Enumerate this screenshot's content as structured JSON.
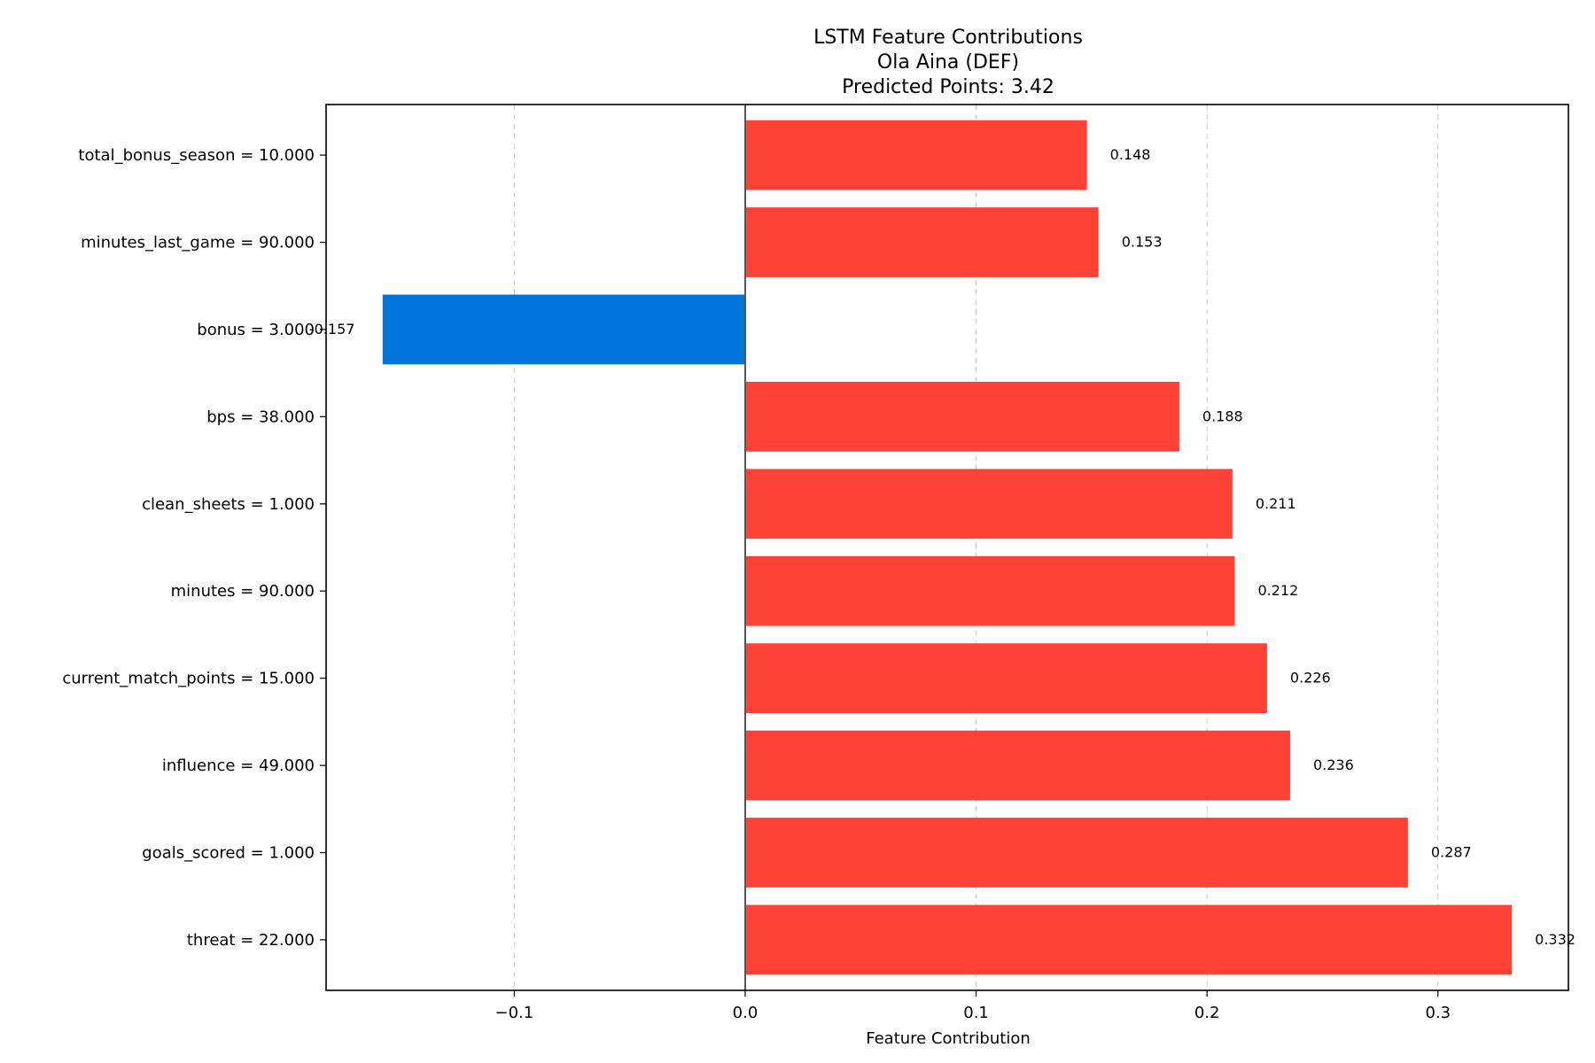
{
  "chart_data": {
    "type": "bar",
    "orientation": "horizontal",
    "title": [
      "LSTM Feature Contributions",
      "Ola Aina (DEF)",
      "Predicted Points: 3.42"
    ],
    "xlabel": "Feature Contribution",
    "ylabel": "",
    "xlim": [
      -0.1815,
      0.3565
    ],
    "xticks": [
      -0.1,
      0.0,
      0.1,
      0.2,
      0.3
    ],
    "xtick_labels": [
      "−0.1",
      "0.0",
      "0.1",
      "0.2",
      "0.3"
    ],
    "grid": "x dashed",
    "zero_line": true,
    "categories": [
      "total_bonus_season = 10.000",
      "minutes_last_game = 90.000",
      "bonus = 3.000",
      "bps = 38.000",
      "clean_sheets = 1.000",
      "minutes = 90.000",
      "current_match_points = 15.000",
      "influence = 49.000",
      "goals_scored = 1.000",
      "threat = 22.000"
    ],
    "values": [
      0.148,
      0.153,
      -0.157,
      0.188,
      0.211,
      0.212,
      0.226,
      0.236,
      0.287,
      0.332
    ],
    "value_labels": [
      "0.148",
      "0.153",
      "-0.157",
      "0.188",
      "0.211",
      "0.212",
      "0.226",
      "0.236",
      "0.287",
      "0.332"
    ],
    "colors": {
      "positive": "#ff4136",
      "negative": "#0074d9"
    }
  }
}
